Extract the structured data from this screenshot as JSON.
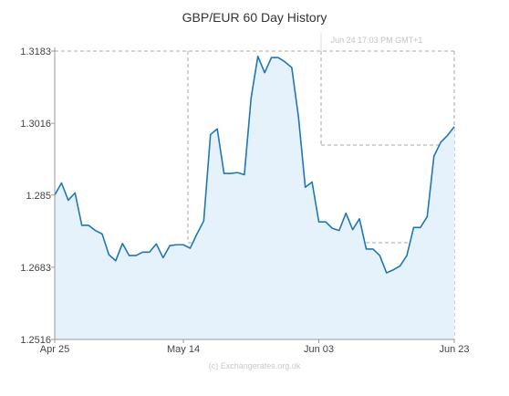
{
  "chart_data": {
    "type": "area",
    "title": "GBP/EUR  60 Day History",
    "timestamp": "Jun 24  17:03 PM GMT+1",
    "credit": "(c) Exchangerates.org.uk",
    "xlabel": "",
    "ylabel": "",
    "ylim": [
      1.2516,
      1.3183
    ],
    "y_ticks": [
      "1.3183",
      "1.3016",
      "1.285",
      "1.2683",
      "1.2516"
    ],
    "x_ticks": [
      {
        "label": "Apr 25",
        "index": 0
      },
      {
        "label": "May 14",
        "index": 19
      },
      {
        "label": "Jun 03",
        "index": 39
      },
      {
        "label": "Jun 23",
        "index": 59
      }
    ],
    "grid": true,
    "line_color": "#1f77b4",
    "fill_color": "#e6f2fb",
    "grid_color": "#aaaaaa",
    "series": [
      {
        "values": [
          1.285,
          1.2878,
          1.2838,
          1.2855,
          1.278,
          1.278,
          1.2768,
          1.276,
          1.2712,
          1.2698,
          1.2738,
          1.271,
          1.271,
          1.2718,
          1.2718,
          1.2737,
          1.2705,
          1.2733,
          1.2735,
          1.2735,
          1.2727,
          1.276,
          1.279,
          1.299,
          1.3003,
          1.29,
          1.29,
          1.2902,
          1.2897,
          1.3075,
          1.3171,
          1.3133,
          1.3168,
          1.3168,
          1.3158,
          1.3145,
          1.303,
          1.2868,
          1.288,
          1.2788,
          1.2788,
          1.2773,
          1.2768,
          1.2808,
          1.277,
          1.2795,
          1.2725,
          1.2725,
          1.271,
          1.267,
          1.2677,
          1.2686,
          1.271,
          1.2775,
          1.2775,
          1.28,
          1.294,
          1.2972,
          1.2988,
          1.3008
        ]
      }
    ]
  }
}
